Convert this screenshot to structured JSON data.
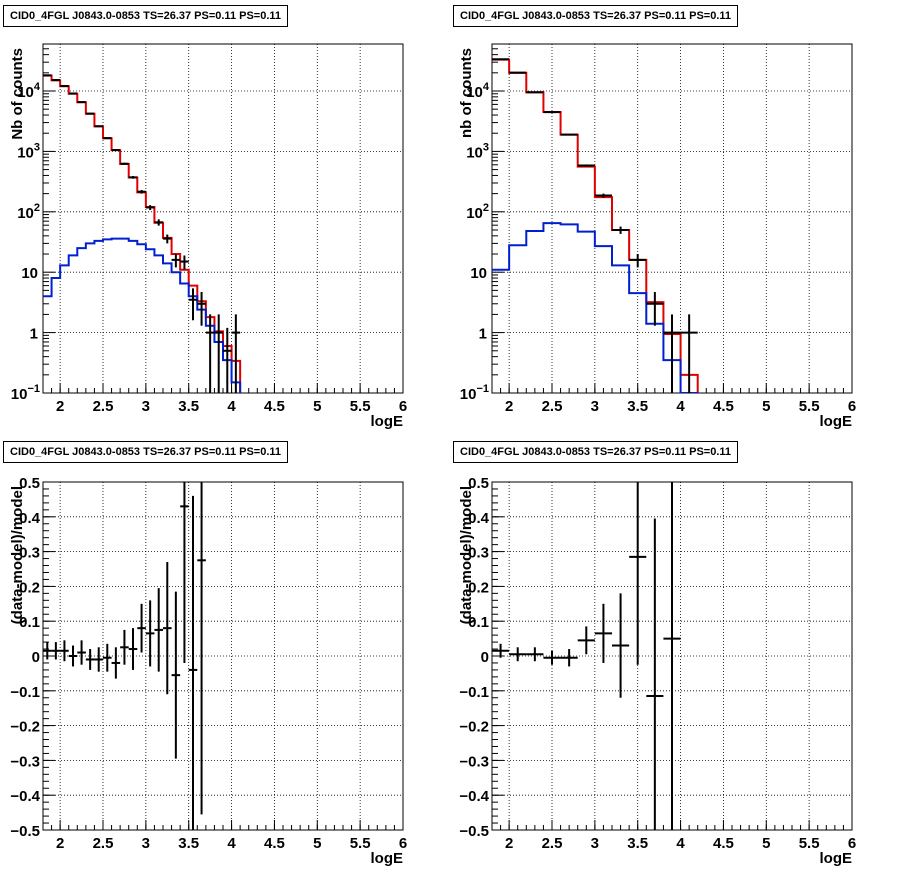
{
  "chart_data": [
    {
      "type": "line",
      "title": "CID0_4FGL J0843.0-0853 TS=26.37 PS=0.11 PS=0.11",
      "xlabel": "logE",
      "ylabel": "Nb of counts",
      "xlim": [
        1.8,
        6.0
      ],
      "ylim": [
        0.1,
        60000
      ],
      "yscale": "log",
      "grid": true,
      "x_ticks": [
        "2",
        "2.5",
        "3",
        "3.5",
        "4",
        "4.5",
        "5",
        "5.5",
        "6"
      ],
      "y_ticks": [
        "10^-1",
        "1",
        "10",
        "10^2",
        "10^3",
        "10^4"
      ],
      "bin_edges": [
        1.8,
        1.9,
        2.0,
        2.1,
        2.2,
        2.3,
        2.4,
        2.5,
        2.6,
        2.7,
        2.8,
        2.9,
        3.0,
        3.1,
        3.2,
        3.3,
        3.4,
        3.5,
        3.6,
        3.7,
        3.8,
        3.9,
        4.0,
        4.1,
        4.2,
        4.3,
        4.4,
        4.5,
        4.6,
        4.7,
        4.8,
        4.9,
        5.0,
        5.1,
        5.2,
        5.3,
        5.4,
        5.5,
        5.6,
        5.7,
        5.8,
        5.9,
        6.0
      ],
      "series": [
        {
          "color": "#e00000",
          "values": [
            18000,
            15000,
            12000,
            9000,
            6500,
            4200,
            2600,
            1650,
            1050,
            620,
            370,
            210,
            120,
            66,
            37,
            20,
            11,
            6.0,
            3.3,
            1.8,
            1.05,
            0.6,
            0.34,
            0,
            0,
            0,
            0,
            0,
            0,
            0,
            0,
            0,
            0,
            0,
            0,
            0,
            0,
            0,
            0,
            0,
            0,
            0
          ]
        },
        {
          "color": "#0020d0",
          "values": [
            4,
            8,
            13,
            19,
            25,
            30,
            33,
            35,
            36,
            36,
            33,
            29,
            24,
            19,
            14,
            10,
            6.5,
            4,
            2.4,
            1.3,
            0.7,
            0.35,
            0.15,
            0,
            0,
            0,
            0,
            0,
            0,
            0,
            0,
            0,
            0,
            0,
            0,
            0,
            0,
            0,
            0,
            0,
            0,
            0
          ]
        },
        {
          "color": "#000000",
          "style": "points",
          "x": [
            1.85,
            1.95,
            2.05,
            2.15,
            2.25,
            2.35,
            2.45,
            2.55,
            2.65,
            2.75,
            2.85,
            2.95,
            3.05,
            3.15,
            3.25,
            3.35,
            3.45,
            3.55,
            3.65,
            3.75,
            3.85,
            3.95,
            4.05
          ],
          "y": [
            18200,
            15200,
            12100,
            9100,
            6550,
            4220,
            2610,
            1660,
            1055,
            625,
            372,
            215,
            118,
            67,
            36,
            16,
            15,
            3.5,
            3.0,
            1.0,
            1.0,
            0.5,
            1.0
          ],
          "yerr": [
            135,
            123,
            110,
            95,
            81,
            65,
            51,
            41,
            32,
            25,
            19,
            15,
            11,
            8,
            6,
            4,
            3.9,
            1.9,
            1.7,
            1.0,
            1.0,
            0.7,
            1.0
          ]
        }
      ]
    },
    {
      "type": "line",
      "title": "CID0_4FGL J0843.0-0853 TS=26.37 PS=0.11 PS=0.11",
      "xlabel": "logE",
      "ylabel": "nb of counts",
      "xlim": [
        1.8,
        6.0
      ],
      "ylim": [
        0.1,
        60000
      ],
      "yscale": "log",
      "grid": true,
      "x_ticks": [
        "2",
        "2.5",
        "3",
        "3.5",
        "4",
        "4.5",
        "5",
        "5.5",
        "6"
      ],
      "y_ticks": [
        "10^-1",
        "1",
        "10",
        "10^2",
        "10^3",
        "10^4"
      ],
      "bin_edges": [
        1.8,
        2.0,
        2.2,
        2.4,
        2.6,
        2.8,
        3.0,
        3.2,
        3.4,
        3.6,
        3.8,
        4.0,
        4.2,
        4.4,
        4.6,
        4.8,
        5.0,
        5.2,
        5.4,
        5.6,
        5.8,
        6.0
      ],
      "series": [
        {
          "color": "#e00000",
          "values": [
            33000,
            20000,
            9500,
            4500,
            1900,
            560,
            175,
            50,
            16,
            3.2,
            0.95,
            0.2,
            0,
            0,
            0,
            0,
            0,
            0,
            0,
            0,
            0
          ]
        },
        {
          "color": "#0020d0",
          "values": [
            11,
            28,
            48,
            65,
            62,
            47,
            27,
            13,
            4.5,
            1.4,
            0.35,
            0.1,
            0,
            0,
            0,
            0,
            0,
            0,
            0,
            0,
            0
          ]
        },
        {
          "color": "#000000",
          "style": "points",
          "x": [
            1.9,
            2.1,
            2.3,
            2.5,
            2.7,
            2.9,
            3.1,
            3.3,
            3.5,
            3.7,
            3.9,
            4.1
          ],
          "y": [
            33500,
            20100,
            9550,
            4480,
            1895,
            585,
            186,
            50,
            16,
            3.0,
            1.0,
            1.0
          ],
          "yerr": [
            183,
            141,
            98,
            67,
            44,
            24,
            14,
            7,
            4,
            1.7,
            1.0,
            1.0
          ]
        }
      ]
    },
    {
      "type": "scatter",
      "title": "CID0_4FGL J0843.0-0853 TS=26.37 PS=0.11 PS=0.11",
      "xlabel": "logE",
      "ylabel": "(data-model)/model",
      "xlim": [
        1.8,
        6.0
      ],
      "ylim": [
        -0.5,
        0.5
      ],
      "grid": true,
      "x_ticks": [
        "2",
        "2.5",
        "3",
        "3.5",
        "4",
        "4.5",
        "5",
        "5.5",
        "6"
      ],
      "y_ticks": [
        "-0.5",
        "-0.4",
        "-0.3",
        "-0.2",
        "-0.1",
        "0",
        "0.1",
        "0.2",
        "0.3",
        "0.4",
        "0.5"
      ],
      "points": {
        "x": [
          1.85,
          1.95,
          2.05,
          2.15,
          2.25,
          2.35,
          2.45,
          2.55,
          2.65,
          2.75,
          2.85,
          2.95,
          3.05,
          3.15,
          3.25,
          3.35,
          3.45,
          3.55,
          3.65
        ],
        "y": [
          0.015,
          0.015,
          0.015,
          0.0,
          0.01,
          -0.01,
          -0.01,
          -0.005,
          -0.02,
          0.025,
          0.02,
          0.08,
          0.065,
          0.075,
          0.08,
          -0.055,
          0.43,
          -0.04,
          0.275
        ],
        "yerr": [
          0.025,
          0.025,
          0.03,
          0.03,
          0.035,
          0.03,
          0.035,
          0.04,
          0.045,
          0.05,
          0.06,
          0.07,
          0.095,
          0.12,
          0.19,
          0.24,
          0.45,
          0.5,
          0.73
        ],
        "xerr": 0.05
      }
    },
    {
      "type": "scatter",
      "title": "CID0_4FGL J0843.0-0853 TS=26.37 PS=0.11 PS=0.11",
      "xlabel": "logE",
      "ylabel": "(data-model)/model",
      "xlim": [
        1.8,
        6.0
      ],
      "ylim": [
        -0.5,
        0.5
      ],
      "grid": true,
      "x_ticks": [
        "2",
        "2.5",
        "3",
        "3.5",
        "4",
        "4.5",
        "5",
        "5.5",
        "6"
      ],
      "y_ticks": [
        "-0.5",
        "-0.4",
        "-0.3",
        "-0.2",
        "-0.1",
        "0",
        "0.1",
        "0.2",
        "0.3",
        "0.4",
        "0.5"
      ],
      "points": {
        "x": [
          1.9,
          2.1,
          2.3,
          2.5,
          2.7,
          2.9,
          3.1,
          3.3,
          3.5,
          3.7,
          3.9
        ],
        "y": [
          0.015,
          0.005,
          0.005,
          -0.005,
          -0.005,
          0.045,
          0.065,
          0.03,
          0.285,
          -0.115,
          0.05
        ],
        "yerr": [
          0.02,
          0.02,
          0.02,
          0.02,
          0.025,
          0.04,
          0.085,
          0.15,
          0.31,
          0.51,
          0.95
        ],
        "xerr": 0.1
      }
    }
  ]
}
